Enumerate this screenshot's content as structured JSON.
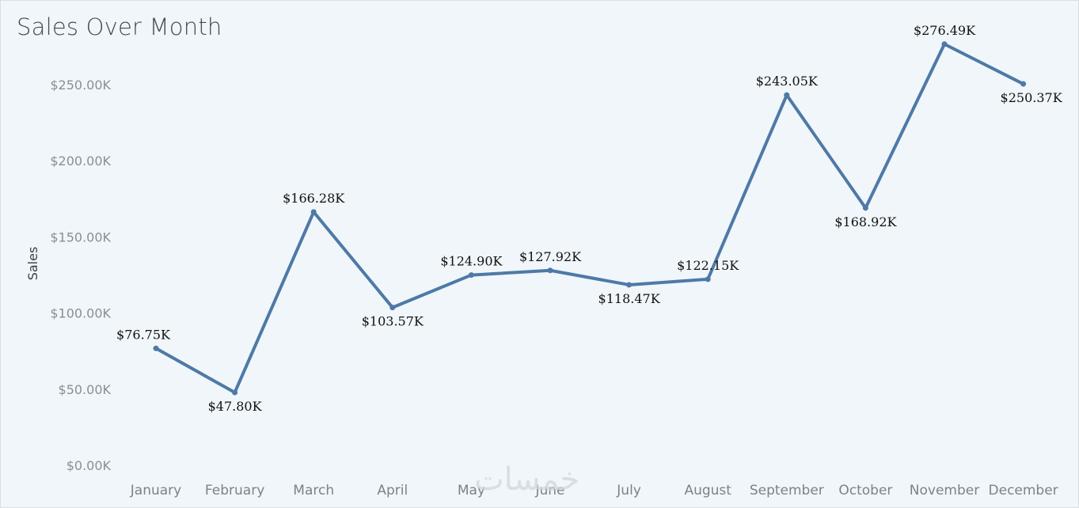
{
  "watermark": "خمسات",
  "chart_data": {
    "type": "line",
    "title": "Sales Over Month",
    "xlabel": "",
    "ylabel": "Sales",
    "ylim": [
      0,
      280000
    ],
    "yticks": [
      0,
      50000,
      100000,
      150000,
      200000,
      250000
    ],
    "ytick_labels": [
      "$0.00K",
      "$50.00K",
      "$100.00K",
      "$150.00K",
      "$200.00K",
      "$250.00K"
    ],
    "grid": false,
    "line_color": "#4e79a7",
    "categories": [
      "January",
      "February",
      "March",
      "April",
      "May",
      "June",
      "July",
      "August",
      "September",
      "October",
      "November",
      "December"
    ],
    "series": [
      {
        "values": [
          76750,
          47800,
          166280,
          103570,
          124900,
          127920,
          118470,
          122150,
          243050,
          168920,
          276490,
          250370
        ],
        "labels": [
          "$76.75K",
          "$47.80K",
          "$166.28K",
          "$103.57K",
          "$124.90K",
          "$127.92K",
          "$118.47K",
          "$122.15K",
          "$243.05K",
          "$168.92K",
          "$276.49K",
          "$250.37K"
        ]
      }
    ]
  }
}
